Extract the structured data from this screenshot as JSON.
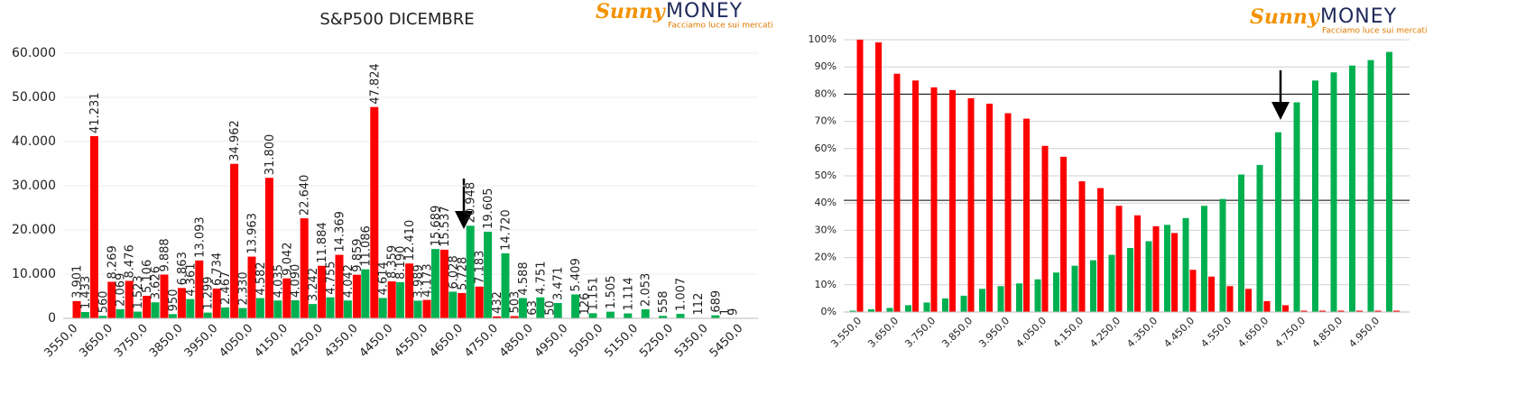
{
  "chart_data": [
    {
      "type": "bar",
      "title": "S&P500 DICEMBRE",
      "logo": {
        "brand": "Sunny",
        "name": "MONEY",
        "tagline": "Facciamo luce sui mercati"
      },
      "categories": [
        "3550,0",
        null,
        "3650,0",
        null,
        "3750,0",
        null,
        "3850,0",
        null,
        "3950,0",
        null,
        "4050,0",
        null,
        "4150,0",
        null,
        "4250,0",
        null,
        "4350,0",
        null,
        "4450,0",
        null,
        "4550,0",
        null,
        "4650,0",
        null,
        "4750,0",
        null,
        "4850,0",
        null,
        "4950,0",
        null,
        "5050,0",
        null,
        "5150,0",
        null,
        "5250,0",
        null,
        "5350,0",
        null,
        "5450,0"
      ],
      "series": [
        {
          "color": "#00b050",
          "values": [
            null,
            1433,
            560,
            2069,
            1523,
            3626,
            950,
            4361,
            1299,
            2467,
            2330,
            4582,
            4035,
            4090,
            3242,
            4755,
            4042,
            11086,
            4614,
            8190,
            3989,
            15689,
            6028,
            20948,
            19605,
            14720,
            4588,
            4751,
            3471,
            5409,
            1151,
            1505,
            1114,
            2053,
            558,
            1007,
            112,
            689,
            9
          ],
          "value_labels": [
            null,
            "1.433",
            "560",
            "2.069",
            "1.523",
            "3.626",
            "950",
            "4.361",
            "1.299",
            "2.467",
            "2.330",
            "4.582",
            "4.035",
            "4.090",
            "3.242",
            "4.755",
            "4.042",
            "11.086",
            "4.614",
            "8.190",
            "3.989",
            "15.689",
            "6.028",
            "20.948",
            "19.605",
            "14.720",
            "4.588",
            "4.751",
            "3.471",
            "5.409",
            "1.151",
            "1.505",
            "1.114",
            "2.053",
            "558",
            "1.007",
            "112",
            "689",
            "9"
          ]
        },
        {
          "color": "#ff0000",
          "values": [
            3901,
            41231,
            8269,
            8476,
            5106,
            9888,
            6863,
            13093,
            6734,
            34962,
            13963,
            31800,
            9042,
            22640,
            11884,
            14369,
            9859,
            47824,
            8359,
            12410,
            4173,
            15537,
            5728,
            7183,
            432,
            503,
            63,
            50,
            null,
            126,
            null,
            null,
            null,
            null,
            null,
            null,
            null,
            1,
            null
          ],
          "value_labels": [
            "3.901",
            "41.231",
            "8.269",
            "8.476",
            "5.106",
            "9.888",
            "6.863",
            "13.093",
            "6.734",
            "34.962",
            "13.963",
            "31.800",
            "9.042",
            "22.640",
            "11.884",
            "14.369",
            "9.859",
            "47.824",
            "8.359",
            "12.410",
            "4.173",
            "15.537",
            "5.728",
            "7.183",
            "432",
            "503",
            "63",
            "50",
            null,
            "126",
            null,
            null,
            null,
            null,
            null,
            null,
            null,
            "1",
            null
          ]
        }
      ],
      "ylim": [
        0,
        60000
      ],
      "yticks": [
        0,
        {
          "value": 10000,
          "label": "10.000"
        },
        {
          "value": 20000,
          "label": "20.000"
        },
        {
          "value": 30000,
          "label": "30.000"
        },
        {
          "value": 40000,
          "label": "40.000"
        },
        {
          "value": 50000,
          "label": "50.000"
        },
        {
          "value": 60000,
          "label": "60.000"
        }
      ],
      "grid": true
    },
    {
      "type": "bar",
      "logo": {
        "brand": "Sunny",
        "name": "MONEY",
        "tagline": "Facciamo luce sui mercati"
      },
      "categories": [
        "3.550,0",
        null,
        "3.650,0",
        null,
        "3.750,0",
        null,
        "3.850,0",
        null,
        "3.950,0",
        null,
        "4.050,0",
        null,
        "4.150,0",
        null,
        "4.250,0",
        null,
        "4.350,0",
        null,
        "4.450,0",
        null,
        "4.550,0",
        null,
        "4.650,0",
        null,
        "4.750,0",
        null,
        "4.850,0",
        null,
        "4.950,0",
        null
      ],
      "series": [
        {
          "color": "#00b050",
          "values": [
            0.5,
            1,
            1.5,
            2.5,
            3.5,
            5,
            6,
            8.5,
            9.5,
            10.5,
            12,
            14.5,
            17,
            19,
            21,
            23.5,
            26,
            32,
            34.5,
            39,
            41.5,
            50.5,
            54,
            66,
            77,
            85,
            88,
            90.5,
            92.5,
            95.5
          ]
        },
        {
          "color": "#ff0000",
          "values": [
            100,
            99,
            87.5,
            85,
            82.5,
            81.5,
            78.5,
            76.5,
            73,
            71,
            61,
            57,
            48,
            45.5,
            39,
            35.5,
            31.5,
            29,
            15.5,
            13,
            9.5,
            8.5,
            4,
            2.5,
            0.5,
            0.5,
            0.5,
            0.5,
            0.5,
            0.5
          ]
        }
      ],
      "ylim": [
        0,
        100
      ],
      "yticks": [
        {
          "value": 0,
          "label": "0%"
        },
        {
          "value": 10,
          "label": "10%"
        },
        {
          "value": 20,
          "label": "20%"
        },
        {
          "value": 30,
          "label": "30%"
        },
        {
          "value": 40,
          "label": "40%"
        },
        {
          "value": 50,
          "label": "50%"
        },
        {
          "value": 60,
          "label": "60%"
        },
        {
          "value": 70,
          "label": "70%"
        },
        {
          "value": 80,
          "label": "80%"
        },
        {
          "value": 90,
          "label": "90%"
        },
        {
          "value": 100,
          "label": "100%"
        }
      ],
      "grid": true,
      "reference_lines": [
        80,
        41
      ]
    }
  ]
}
